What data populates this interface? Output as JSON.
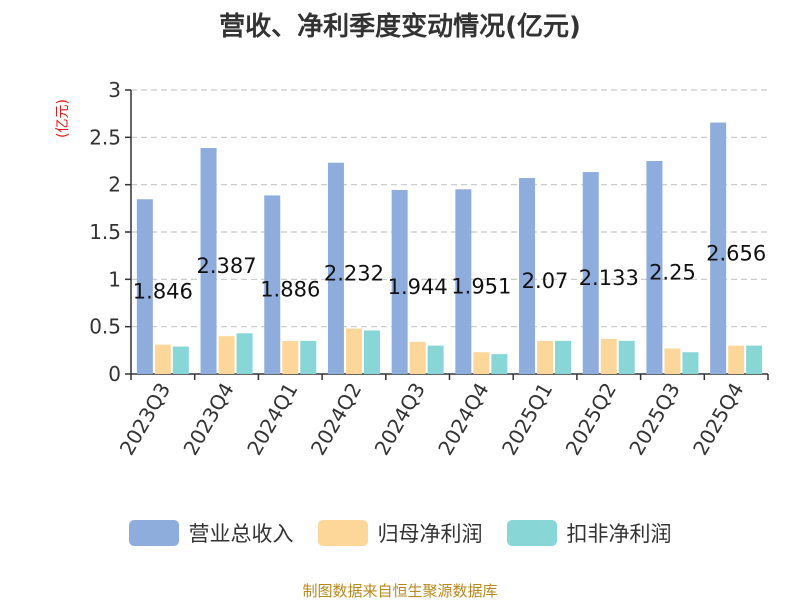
{
  "chart_data": {
    "type": "bar",
    "title": "营收、净利季度变动情况(亿元)",
    "unit_label": "(亿元)",
    "categories": [
      "2023Q3",
      "2023Q4",
      "2024Q1",
      "2024Q2",
      "2024Q3",
      "2024Q4",
      "2025Q1",
      "2025Q2",
      "2025Q3",
      "2025Q4"
    ],
    "series": [
      {
        "name": "营业总收入",
        "color": "#8eacdc",
        "values": [
          1.846,
          2.387,
          1.886,
          2.232,
          1.944,
          1.951,
          2.07,
          2.133,
          2.25,
          2.656
        ],
        "labels": [
          "1.846",
          "2.387",
          "1.886",
          "2.232",
          "1.944",
          "1.951",
          "2.07",
          "2.133",
          "2.25",
          "2.656"
        ]
      },
      {
        "name": "归母净利润",
        "color": "#fdd799",
        "values": [
          0.31,
          0.4,
          0.35,
          0.48,
          0.34,
          0.23,
          0.35,
          0.37,
          0.27,
          0.3
        ]
      },
      {
        "name": "扣非净利润",
        "color": "#88d6d6",
        "values": [
          0.29,
          0.43,
          0.35,
          0.46,
          0.3,
          0.21,
          0.35,
          0.35,
          0.23,
          0.3
        ]
      }
    ],
    "yticks": [
      "0",
      "0.5",
      "1",
      "1.5",
      "2",
      "2.5",
      "3"
    ],
    "ylim": [
      0,
      3
    ],
    "grid": true,
    "legend_position": "bottom"
  },
  "footer": {
    "source": "制图数据来自恒生聚源数据库"
  }
}
